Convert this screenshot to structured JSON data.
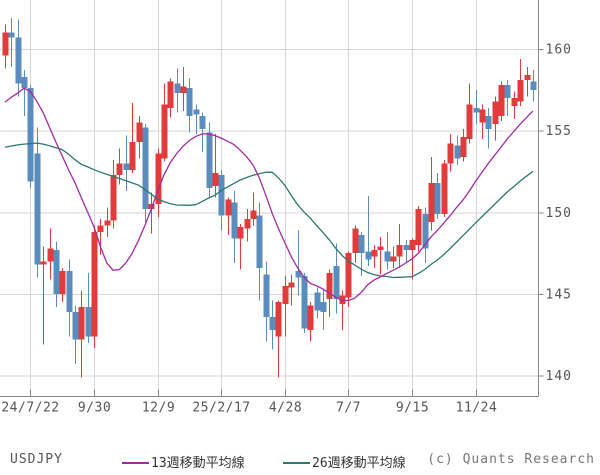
{
  "footer": {
    "symbol": "USDJPY",
    "copyright": "(c) Quants Research"
  },
  "legend": {
    "ma13": {
      "label": "13週移動平均線",
      "color": "#a02ca0"
    },
    "ma26": {
      "label": "26週移動平均線",
      "color": "#2d786e"
    }
  },
  "chart_data": {
    "type": "candlestick",
    "title": "USDJPY weekly candlestick chart with 13-week and 26-week moving averages",
    "symbol": "USDJPY",
    "x_tick_labels": [
      "24/7/22",
      "9/30",
      "12/9",
      "25/2/17",
      "4/28",
      "7/7",
      "9/15",
      "11/24"
    ],
    "x_tick_indices": [
      4,
      14,
      24,
      34,
      44,
      54,
      64,
      74
    ],
    "y_ticks": [
      140,
      145,
      150,
      155,
      160
    ],
    "ylim": [
      138.8,
      163.0
    ],
    "grid": true,
    "legend_position": "bottom",
    "up_color": "#e23b3b",
    "down_color": "#5b8cbe",
    "grid_color": "#d6d6d6",
    "axis_color": "#888888",
    "tick_text_color": "#555555",
    "candles_ohlc": [
      [
        159.6,
        161.5,
        158.8,
        161.0
      ],
      [
        161.0,
        161.9,
        158.9,
        160.7
      ],
      [
        160.7,
        161.8,
        157.1,
        157.9
      ],
      [
        158.3,
        158.7,
        155.9,
        157.6
      ],
      [
        157.6,
        157.8,
        151.5,
        151.9
      ],
      [
        153.6,
        155.2,
        146.0,
        146.8
      ],
      [
        146.8,
        147.9,
        141.9,
        147.0
      ],
      [
        147.0,
        149.0,
        145.9,
        147.8
      ],
      [
        147.7,
        148.2,
        144.2,
        145.0
      ],
      [
        145.0,
        146.6,
        144.5,
        146.4
      ],
      [
        146.4,
        147.1,
        142.4,
        143.9
      ],
      [
        143.9,
        144.3,
        140.7,
        142.2
      ],
      [
        142.2,
        145.2,
        139.9,
        144.2
      ],
      [
        144.2,
        146.3,
        142.0,
        142.4
      ],
      [
        142.4,
        149.2,
        141.7,
        148.8
      ],
      [
        148.8,
        149.6,
        147.4,
        149.2
      ],
      [
        149.2,
        150.3,
        148.5,
        149.5
      ],
      [
        149.5,
        153.2,
        149.0,
        152.3
      ],
      [
        152.3,
        153.9,
        151.7,
        153.0
      ],
      [
        153.0,
        154.7,
        151.3,
        152.6
      ],
      [
        152.6,
        156.7,
        152.4,
        154.3
      ],
      [
        154.3,
        155.9,
        153.3,
        155.5
      ],
      [
        155.2,
        155.4,
        149.4,
        150.2
      ],
      [
        150.2,
        151.2,
        148.7,
        150.5
      ],
      [
        150.5,
        153.9,
        149.7,
        153.6
      ],
      [
        153.3,
        157.9,
        153.1,
        156.6
      ],
      [
        156.4,
        158.2,
        155.8,
        158.0
      ],
      [
        157.9,
        158.8,
        156.1,
        157.3
      ],
      [
        157.3,
        158.9,
        156.2,
        157.7
      ],
      [
        157.6,
        158.2,
        154.9,
        155.9
      ],
      [
        156.3,
        156.6,
        154.8,
        156.0
      ],
      [
        155.9,
        156.1,
        153.7,
        155.1
      ],
      [
        154.9,
        155.5,
        150.9,
        151.5
      ],
      [
        151.6,
        154.8,
        150.9,
        152.4
      ],
      [
        152.3,
        152.6,
        148.9,
        149.8
      ],
      [
        149.8,
        150.9,
        148.6,
        150.8
      ],
      [
        150.6,
        151.3,
        146.9,
        148.4
      ],
      [
        148.4,
        149.3,
        146.5,
        149.1
      ],
      [
        149.0,
        150.2,
        148.2,
        149.6
      ],
      [
        149.6,
        151.2,
        149.2,
        150.1
      ],
      [
        149.8,
        150.6,
        144.6,
        146.6
      ],
      [
        146.2,
        147.0,
        142.1,
        143.6
      ],
      [
        143.6,
        144.6,
        141.6,
        142.8
      ],
      [
        142.4,
        144.6,
        139.9,
        144.5
      ],
      [
        144.4,
        146.1,
        142.4,
        145.5
      ],
      [
        145.4,
        146.2,
        144.3,
        145.7
      ],
      [
        146.4,
        148.9,
        144.9,
        146.0
      ],
      [
        146.1,
        146.3,
        142.6,
        142.9
      ],
      [
        142.8,
        144.5,
        142.1,
        144.3
      ],
      [
        145.1,
        145.4,
        143.5,
        144.0
      ],
      [
        144.5,
        145.3,
        142.8,
        143.9
      ],
      [
        144.7,
        146.5,
        143.6,
        146.3
      ],
      [
        146.7,
        148.1,
        143.8,
        144.7
      ],
      [
        144.4,
        145.2,
        142.8,
        144.9
      ],
      [
        144.8,
        147.6,
        144.2,
        147.5
      ],
      [
        147.5,
        149.2,
        146.9,
        149.0
      ],
      [
        148.6,
        148.8,
        146.1,
        147.5
      ],
      [
        147.6,
        151.0,
        146.7,
        147.1
      ],
      [
        147.3,
        148.0,
        146.6,
        147.7
      ],
      [
        147.7,
        148.5,
        146.2,
        147.9
      ],
      [
        147.6,
        148.8,
        146.5,
        147.0
      ],
      [
        147.0,
        147.9,
        146.6,
        147.3
      ],
      [
        147.3,
        149.3,
        146.6,
        148.0
      ],
      [
        148.0,
        148.3,
        146.9,
        147.7
      ],
      [
        147.7,
        148.4,
        145.9,
        148.3
      ],
      [
        148.0,
        150.4,
        147.6,
        150.2
      ],
      [
        149.9,
        150.3,
        146.9,
        147.8
      ],
      [
        149.4,
        153.4,
        148.9,
        151.8
      ],
      [
        151.8,
        152.4,
        149.6,
        149.9
      ],
      [
        149.9,
        153.2,
        149.7,
        153.0
      ],
      [
        153.0,
        154.8,
        152.5,
        154.2
      ],
      [
        154.1,
        154.7,
        152.9,
        153.3
      ],
      [
        153.4,
        155.1,
        153.1,
        154.6
      ],
      [
        154.5,
        157.9,
        154.2,
        156.6
      ],
      [
        156.4,
        157.5,
        155.4,
        156.1
      ],
      [
        155.5,
        156.6,
        154.5,
        156.3
      ],
      [
        155.9,
        156.4,
        153.9,
        155.1
      ],
      [
        155.4,
        157.1,
        154.4,
        156.8
      ],
      [
        155.9,
        158.0,
        155.6,
        157.8
      ],
      [
        157.8,
        158.1,
        155.9,
        157.0
      ],
      [
        156.5,
        157.4,
        155.7,
        157.0
      ],
      [
        156.8,
        159.4,
        156.5,
        158.1
      ],
      [
        158.1,
        158.9,
        157.1,
        158.4
      ],
      [
        158.0,
        158.7,
        156.8,
        157.5
      ]
    ],
    "series": [
      {
        "name": "13週移動平均線",
        "color": "#a02ca0",
        "values": [
          156.75,
          157.05,
          157.3,
          157.6,
          157.4,
          156.8,
          156.1,
          155.2,
          154.3,
          153.45,
          152.6,
          151.8,
          150.9,
          150.0,
          149.1,
          147.9,
          146.9,
          146.45,
          146.5,
          146.9,
          147.5,
          148.3,
          149.2,
          150.2,
          151.3,
          152.3,
          153.05,
          153.6,
          154.05,
          154.4,
          154.65,
          154.8,
          154.8,
          154.7,
          154.55,
          154.35,
          154.15,
          153.8,
          153.4,
          152.9,
          152.1,
          151.05,
          149.95,
          149.0,
          148.15,
          147.3,
          146.6,
          146.05,
          145.65,
          145.5,
          145.3,
          145.05,
          144.8,
          144.6,
          144.6,
          144.75,
          145.1,
          145.55,
          145.85,
          146.05,
          146.25,
          146.45,
          146.65,
          146.9,
          147.15,
          147.5,
          148.0,
          148.5,
          148.9,
          149.35,
          149.8,
          150.3,
          150.75,
          151.3,
          151.9,
          152.45,
          153.0,
          153.5,
          154.0,
          154.5,
          154.95,
          155.4,
          155.8,
          156.2
        ]
      },
      {
        "name": "26週移動平均線",
        "color": "#2d786e",
        "values": [
          153.98,
          154.06,
          154.13,
          154.18,
          154.21,
          154.24,
          154.18,
          154.08,
          153.96,
          153.84,
          153.56,
          153.22,
          152.94,
          152.78,
          152.61,
          152.46,
          152.33,
          152.2,
          152.07,
          151.94,
          151.8,
          151.66,
          151.4,
          151.11,
          150.82,
          150.66,
          150.53,
          150.45,
          150.44,
          150.43,
          150.47,
          150.67,
          150.87,
          151.05,
          151.34,
          151.56,
          151.78,
          151.98,
          152.13,
          152.27,
          152.37,
          152.45,
          152.46,
          152.11,
          151.66,
          151.04,
          150.47,
          150.03,
          149.64,
          149.2,
          148.76,
          148.31,
          147.8,
          147.36,
          147.01,
          146.77,
          146.52,
          146.32,
          146.19,
          146.11,
          146.07,
          146.01,
          146.02,
          146.04,
          146.06,
          146.26,
          146.5,
          146.81,
          147.09,
          147.41,
          147.79,
          148.18,
          148.57,
          148.96,
          149.36,
          149.74,
          150.12,
          150.5,
          150.88,
          151.25,
          151.58,
          151.92,
          152.21,
          152.51
        ]
      }
    ]
  }
}
